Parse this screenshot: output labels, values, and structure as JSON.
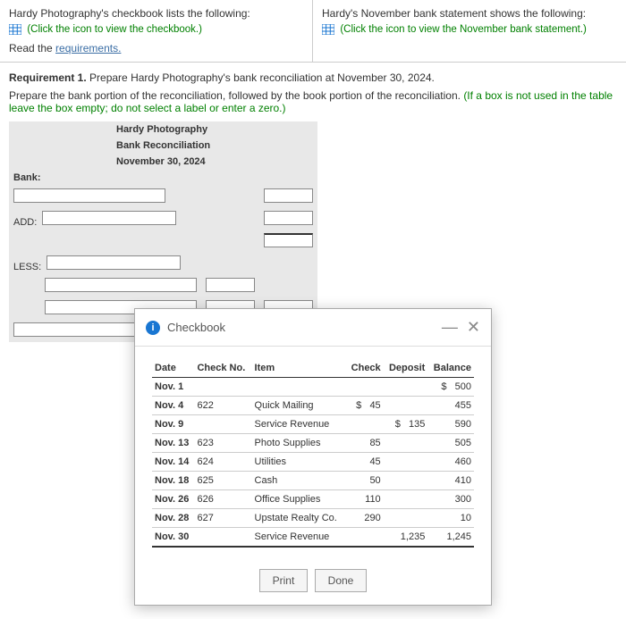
{
  "top": {
    "left_text": "Hardy Photography's checkbook lists the following:",
    "left_link": "(Click the icon to view the checkbook.)",
    "right_text": "Hardy's November bank statement shows the following:",
    "right_link_a": "(Click the icon to view the ",
    "right_link_month": "November",
    "right_link_b": " bank statement.)",
    "read_the": "Read the ",
    "requirements": "requirements."
  },
  "req": {
    "label": "Requirement 1.",
    "text": " Prepare Hardy Photography's bank reconciliation at November 30, 2024.",
    "sub_a": "Prepare the bank portion of the reconciliation, followed by the book portion of the reconciliation. ",
    "sub_b": "(If a box is not used in the table leave the box empty; do not select a label or enter a zero.)"
  },
  "recon": {
    "title1": "Hardy Photography",
    "title2": "Bank Reconciliation",
    "title3": "November 30, 2024",
    "bank": "Bank:",
    "add": "ADD:",
    "less": "LESS:"
  },
  "modal": {
    "title": "Checkbook",
    "headers": {
      "date": "Date",
      "checkno": "Check No.",
      "item": "Item",
      "check": "Check",
      "deposit": "Deposit",
      "balance": "Balance"
    },
    "cur": "$",
    "rows": [
      {
        "date": "Nov. 1",
        "no": "",
        "item": "",
        "check": "",
        "deposit": "",
        "balance": "500"
      },
      {
        "date": "Nov. 4",
        "no": "622",
        "item": "Quick Mailing",
        "check": "45",
        "deposit": "",
        "balance": "455",
        "checkcur": "$"
      },
      {
        "date": "Nov. 9",
        "no": "",
        "item": "Service Revenue",
        "check": "",
        "deposit": "135",
        "balance": "590",
        "depcur": "$"
      },
      {
        "date": "Nov. 13",
        "no": "623",
        "item": "Photo Supplies",
        "check": "85",
        "deposit": "",
        "balance": "505"
      },
      {
        "date": "Nov. 14",
        "no": "624",
        "item": "Utilities",
        "check": "45",
        "deposit": "",
        "balance": "460"
      },
      {
        "date": "Nov. 18",
        "no": "625",
        "item": "Cash",
        "check": "50",
        "deposit": "",
        "balance": "410"
      },
      {
        "date": "Nov. 26",
        "no": "626",
        "item": "Office Supplies",
        "check": "110",
        "deposit": "",
        "balance": "300"
      },
      {
        "date": "Nov. 28",
        "no": "627",
        "item": "Upstate Realty Co.",
        "check": "290",
        "deposit": "",
        "balance": "10"
      },
      {
        "date": "Nov. 30",
        "no": "",
        "item": "Service Revenue",
        "check": "",
        "deposit": "1,235",
        "balance": "1,245"
      }
    ],
    "print": "Print",
    "done": "Done"
  }
}
